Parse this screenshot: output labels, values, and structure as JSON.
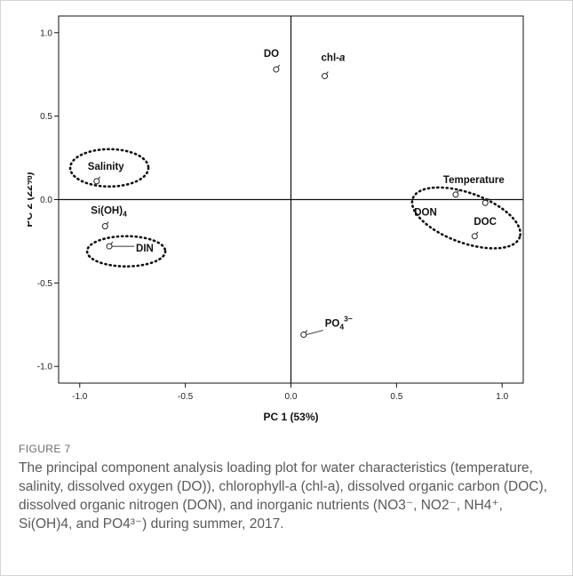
{
  "chart_data": {
    "type": "scatter",
    "xlabel": "PC 1 (53%)",
    "ylabel": "PC 2 (22%)",
    "xlim": [
      -1.1,
      1.1
    ],
    "ylim": [
      -1.1,
      1.1
    ],
    "x_ticks": [
      -1.0,
      -0.5,
      0.0,
      0.5,
      1.0
    ],
    "x_tick_labels": [
      "-1.0",
      "-0.5",
      "0.0",
      "0.5",
      "1.0"
    ],
    "y_ticks": [
      1.0,
      0.5,
      0.0,
      -0.5,
      -1.0
    ],
    "y_tick_labels": [
      "1.0",
      "0.5",
      "0.0",
      "-0.5",
      "-1.0"
    ],
    "grid": false,
    "reference_lines": {
      "x": 0,
      "y": 0
    },
    "points": [
      {
        "label": "DO",
        "x": -0.07,
        "y": 0.78
      },
      {
        "label": "chl-",
        "label_italic": "a",
        "x": 0.16,
        "y": 0.74
      },
      {
        "label": "Salinity",
        "x": -0.92,
        "y": 0.11
      },
      {
        "label": "Si(OH)",
        "label_sub": "4",
        "x": -0.88,
        "y": -0.16
      },
      {
        "label": "DIN",
        "x": -0.86,
        "y": -0.28
      },
      {
        "label": "PO",
        "label_sub": "4",
        "label_sup": "3−",
        "x": 0.06,
        "y": -0.81
      },
      {
        "label": "Temperature",
        "x": 0.78,
        "y": 0.03
      },
      {
        "label": "DON",
        "x": 0.92,
        "y": -0.02
      },
      {
        "label": "DOC",
        "x": 0.87,
        "y": -0.22
      }
    ]
  },
  "caption": {
    "figure_label": "FIGURE 7",
    "text": "The principal component analysis loading plot for water characteristics (temperature, salinity, dissolved oxygen (DO)), chlorophyll-a (chl-a), dissolved organic carbon (DOC), dissolved organic nitrogen (DON), and inorganic nutrients (NO3⁻, NO2⁻, NH4⁺, Si(OH)4, and PO4³⁻) during summer, 2017."
  }
}
